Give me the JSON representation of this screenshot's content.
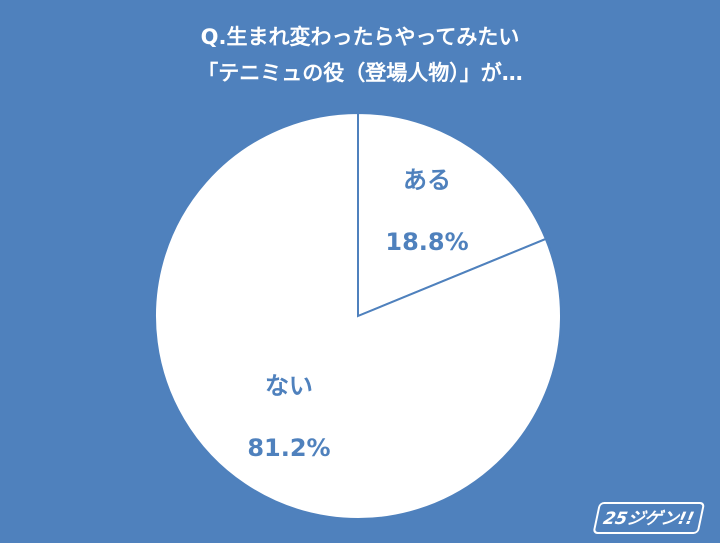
{
  "chart_data": {
    "type": "pie",
    "title": "Q.生まれ変わったらやってみたい",
    "subtitle": "「テニミュの役（登場人物）」が…",
    "categories": [
      "ある",
      "ない"
    ],
    "values": [
      18.8,
      81.2
    ],
    "value_labels": [
      "18.8%",
      "81.2%"
    ],
    "colors": [
      "#ffffff",
      "#ffffff"
    ],
    "edgecolor": "#4f81bd",
    "label_color": "#4f81bd",
    "background": "#4f81bd"
  },
  "logo": "25ジゲン!!"
}
